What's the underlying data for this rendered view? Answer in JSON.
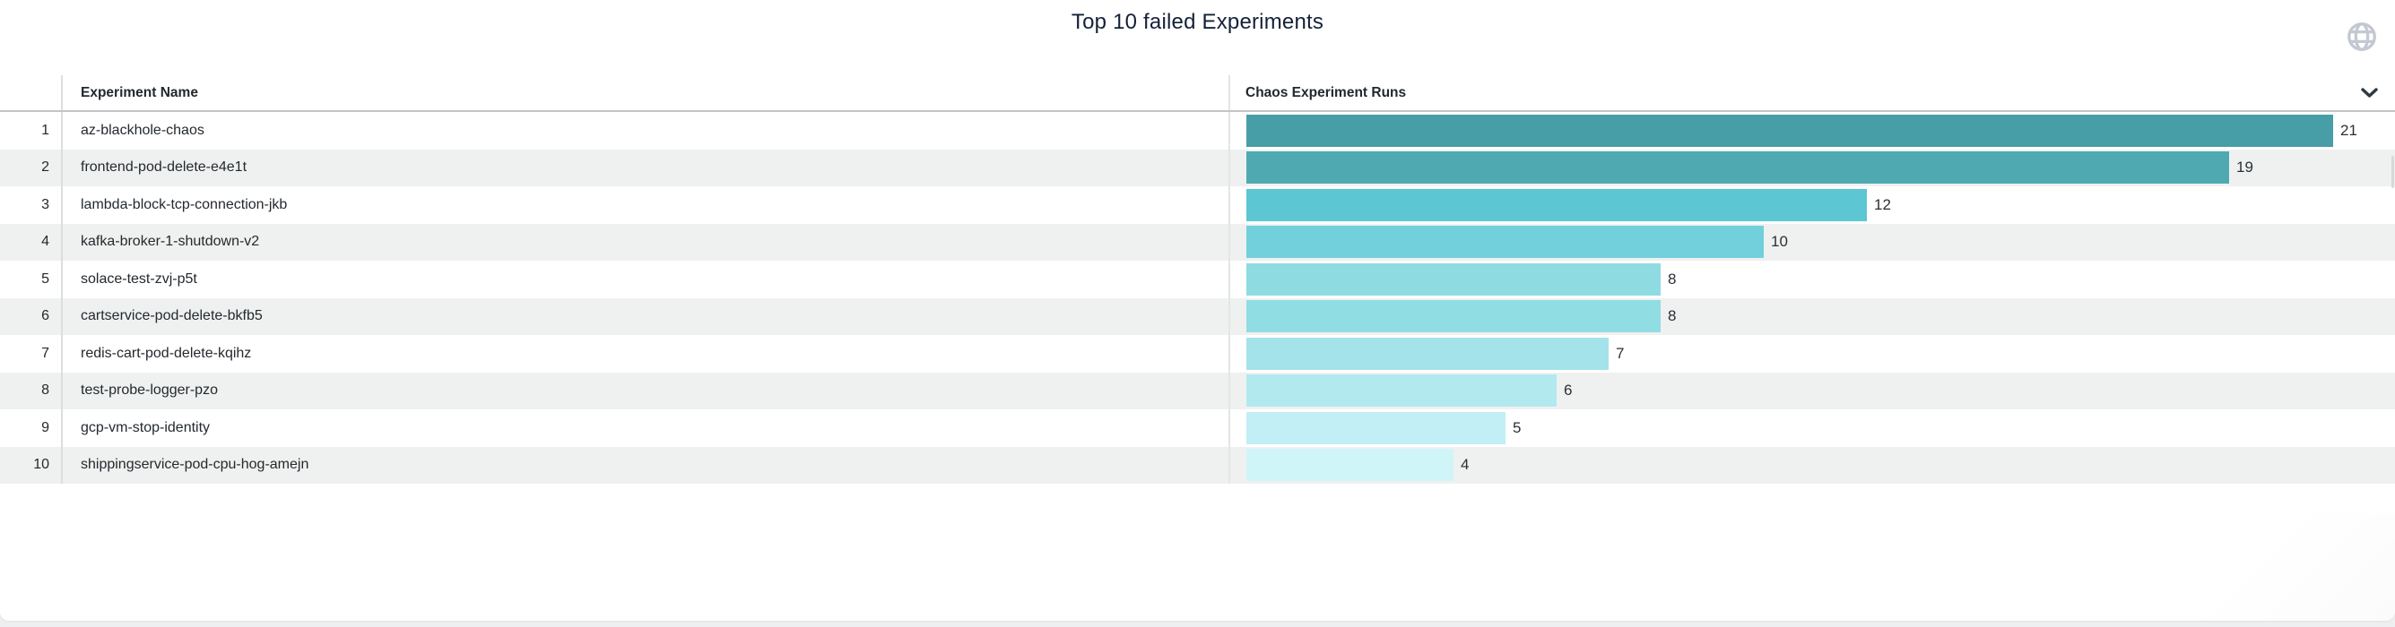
{
  "title": "Top 10 failed Experiments",
  "header": {
    "name_column": "Experiment Name",
    "runs_column": "Chaos Experiment Runs"
  },
  "icons": {
    "globe": "globe-icon",
    "chevron": "chevron-down-icon"
  },
  "colors": {
    "title_text": "#15203a",
    "header_text": "#22282d",
    "body_text": "#24292e",
    "row_alt_background": "#eff1f0",
    "header_border": "#c2c5c8",
    "divider": "#dcdede",
    "globe_icon": "#c3c8d3",
    "chevron_icon": "#303840"
  },
  "rows": [
    {
      "rank": "1",
      "name": "az-blackhole-chaos",
      "runs": 21
    },
    {
      "rank": "2",
      "name": "frontend-pod-delete-e4e1t",
      "runs": 19
    },
    {
      "rank": "3",
      "name": "lambda-block-tcp-connection-jkb",
      "runs": 12
    },
    {
      "rank": "4",
      "name": "kafka-broker-1-shutdown-v2",
      "runs": 10
    },
    {
      "rank": "5",
      "name": "solace-test-zvj-p5t",
      "runs": 8
    },
    {
      "rank": "6",
      "name": "cartservice-pod-delete-bkfb5",
      "runs": 8
    },
    {
      "rank": "7",
      "name": "redis-cart-pod-delete-kqihz",
      "runs": 7
    },
    {
      "rank": "8",
      "name": "test-probe-logger-pzo",
      "runs": 6
    },
    {
      "rank": "9",
      "name": "gcp-vm-stop-identity",
      "runs": 5
    },
    {
      "rank": "10",
      "name": "shippingservice-pod-cpu-hog-amejn",
      "runs": 4
    }
  ],
  "chart_data": {
    "type": "bar",
    "orientation": "horizontal",
    "title": "Top 10 failed Experiments",
    "xlabel": "Chaos Experiment Runs",
    "ylabel": "Experiment Name",
    "categories": [
      "az-blackhole-chaos",
      "frontend-pod-delete-e4e1t",
      "lambda-block-tcp-connection-jkb",
      "kafka-broker-1-shutdown-v2",
      "solace-test-zvj-p5t",
      "cartservice-pod-delete-bkfb5",
      "redis-cart-pod-delete-kqihz",
      "test-probe-logger-pzo",
      "gcp-vm-stop-identity",
      "shippingservice-pod-cpu-hog-amejn"
    ],
    "values": [
      21,
      19,
      12,
      10,
      8,
      8,
      7,
      6,
      5,
      4
    ],
    "value_labels_shown": true,
    "xlim": [
      0,
      22.2
    ],
    "grid": false,
    "legend": false,
    "bar_colors": [
      "#479ea7",
      "#4fa9b1",
      "#5cc6d3",
      "#72cfdc",
      "#8edce2",
      "#90dde3",
      "#a4e3e9",
      "#b2e9ef",
      "#c1eff5",
      "#d0f5f9"
    ]
  }
}
